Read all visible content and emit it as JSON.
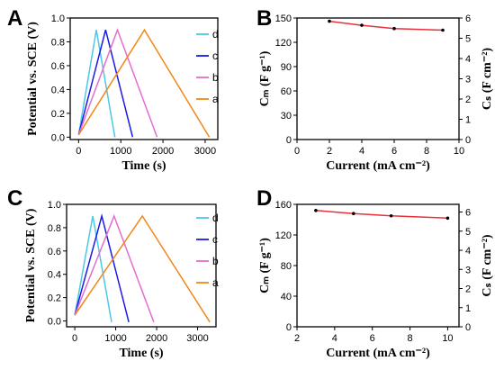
{
  "chart_data": [
    {
      "panel": "A",
      "type": "line",
      "xlabel": "Time (s)",
      "ylabel": "Potential vs. SCE (V)",
      "xlim": [
        -200,
        3300
      ],
      "ylim": [
        -0.02,
        1.0
      ],
      "xticks": [
        "0",
        "1000",
        "2000",
        "3000"
      ],
      "yticks": [
        "0.0",
        "0.2",
        "0.4",
        "0.6",
        "0.8",
        "1.0"
      ],
      "legend_position": "top-right",
      "series": [
        {
          "name": "d",
          "color": "#4cc7e8",
          "points": [
            [
              0,
              0.02
            ],
            [
              420,
              0.9
            ],
            [
              860,
              0.0
            ]
          ]
        },
        {
          "name": "c",
          "color": "#1a1ae6",
          "points": [
            [
              0,
              0.02
            ],
            [
              640,
              0.9
            ],
            [
              1280,
              0.0
            ]
          ]
        },
        {
          "name": "b",
          "color": "#e36ed0",
          "points": [
            [
              0,
              0.02
            ],
            [
              920,
              0.9
            ],
            [
              1860,
              0.0
            ]
          ]
        },
        {
          "name": "a",
          "color": "#f0881a",
          "points": [
            [
              0,
              0.02
            ],
            [
              1560,
              0.9
            ],
            [
              3100,
              0.0
            ]
          ]
        }
      ]
    },
    {
      "panel": "B",
      "type": "line",
      "xlabel": "Current (mA cm⁻²)",
      "ylabel": "Cₘ (F g⁻¹)",
      "ylabel_right": "Cₛ (F cm⁻²)",
      "xlim": [
        0,
        10
      ],
      "ylim": [
        0,
        150
      ],
      "ylim_right": [
        0,
        6
      ],
      "xticks": [
        "0",
        "2",
        "4",
        "6",
        "8",
        "10"
      ],
      "yticks": [
        "0",
        "30",
        "60",
        "90",
        "120",
        "150"
      ],
      "yticks_right": [
        "0",
        "1",
        "2",
        "3",
        "4",
        "5",
        "6"
      ],
      "series": [
        {
          "color": "#e8303a",
          "x": [
            2,
            4,
            6,
            9
          ],
          "y": [
            146,
            141,
            137,
            135
          ]
        }
      ]
    },
    {
      "panel": "C",
      "type": "line",
      "xlabel": "Time (s)",
      "ylabel": "Potential vs. SCE (V)",
      "xlim": [
        -200,
        3450
      ],
      "ylim": [
        -0.05,
        1.0
      ],
      "xticks": [
        "0",
        "1000",
        "2000",
        "3000"
      ],
      "yticks": [
        "0.0",
        "0.2",
        "0.4",
        "0.6",
        "0.8",
        "1.0"
      ],
      "legend_position": "top-right",
      "series": [
        {
          "name": "d",
          "color": "#4cc7e8",
          "points": [
            [
              0,
              0.05
            ],
            [
              440,
              0.9
            ],
            [
              900,
              -0.01
            ]
          ]
        },
        {
          "name": "c",
          "color": "#1a1ae6",
          "points": [
            [
              0,
              0.05
            ],
            [
              660,
              0.9
            ],
            [
              1320,
              -0.01
            ]
          ]
        },
        {
          "name": "b",
          "color": "#e36ed0",
          "points": [
            [
              0,
              0.05
            ],
            [
              960,
              0.9
            ],
            [
              1930,
              -0.01
            ]
          ]
        },
        {
          "name": "a",
          "color": "#f0881a",
          "points": [
            [
              0,
              0.05
            ],
            [
              1650,
              0.9
            ],
            [
              3300,
              -0.01
            ]
          ]
        }
      ]
    },
    {
      "panel": "D",
      "type": "line",
      "xlabel": "Current (mA cm⁻²)",
      "ylabel": "Cₘ (F g⁻¹)",
      "ylabel_right": "Cₛ (F cm⁻²)",
      "xlim": [
        2,
        10.6
      ],
      "ylim": [
        0,
        160
      ],
      "ylim_right": [
        0,
        6.4
      ],
      "xticks": [
        "2",
        "4",
        "6",
        "8",
        "10"
      ],
      "yticks": [
        "0",
        "40",
        "80",
        "120",
        "160"
      ],
      "yticks_right": [
        "0",
        "1",
        "2",
        "3",
        "4",
        "5",
        "6"
      ],
      "series": [
        {
          "color": "#e8303a",
          "x": [
            3,
            5,
            7,
            10
          ],
          "y": [
            152,
            148,
            145,
            142
          ]
        }
      ]
    }
  ]
}
